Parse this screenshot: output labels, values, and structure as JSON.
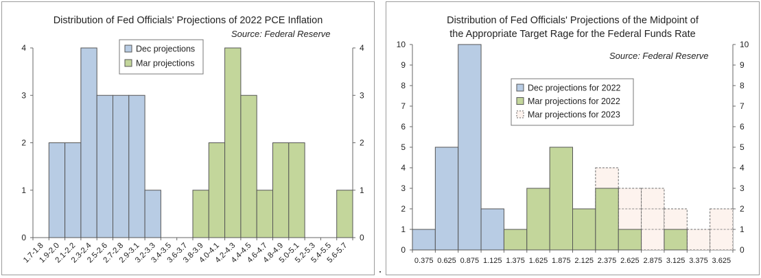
{
  "chart_data": [
    {
      "type": "bar",
      "title": "Distribution of Fed Officials' Projections of 2022 PCE Inflation",
      "source": "Source: Federal Reserve",
      "categories": [
        "1.7-1.8",
        "1.9-2.0",
        "2.1-2.2",
        "2.3-2.4",
        "2.5-2.6",
        "2.7-2.8",
        "2.9-3.1",
        "3.2-3.3",
        "3.4-3.5",
        "3.6-3.7",
        "3.8-3.9",
        "4.0-4.1",
        "4.2-4.3",
        "4.4-4.5",
        "4.6-4.7",
        "4.8-4.9",
        "5.0-5.1",
        "5.2-5.3",
        "5.4-5.5",
        "5.6-5.7"
      ],
      "ylim": [
        0,
        4
      ],
      "yticks": [
        "0",
        "1",
        "2",
        "3",
        "4"
      ],
      "legend_position": "top-center",
      "grid": false,
      "series": [
        {
          "name": "Dec projections",
          "color": "#b8cce4",
          "style": "solid",
          "values": [
            0,
            2,
            2,
            4,
            3,
            3,
            3,
            1,
            0,
            0,
            0,
            0,
            0,
            0,
            0,
            0,
            0,
            0,
            0,
            0
          ]
        },
        {
          "name": "Mar projections",
          "color": "#c3d69b",
          "style": "solid",
          "values": [
            0,
            0,
            0,
            0,
            0,
            0,
            0,
            0,
            0,
            0,
            1,
            2,
            4,
            3,
            1,
            2,
            2,
            0,
            0,
            1
          ]
        }
      ]
    },
    {
      "type": "bar",
      "title": "Distribution of Fed Officials' Projections of the Midpoint of",
      "title_line2": "the Appropriate Target Rage for the Federal Funds Rate",
      "source": "Source: Federal Reserve",
      "categories": [
        "0.375",
        "0.625",
        "0.875",
        "1.125",
        "1.375",
        "1.625",
        "1.875",
        "2.125",
        "2.375",
        "2.625",
        "2.875",
        "3.125",
        "3.375",
        "3.625"
      ],
      "ylim": [
        0,
        10
      ],
      "yticks": [
        "0",
        "1",
        "2",
        "3",
        "4",
        "5",
        "6",
        "7",
        "8",
        "9",
        "10"
      ],
      "legend_position": "top-center",
      "grid": false,
      "series": [
        {
          "name": "Dec projections for 2022",
          "color": "#b8cce4",
          "style": "solid",
          "values": [
            1,
            5,
            10,
            2,
            0,
            0,
            0,
            0,
            0,
            0,
            0,
            0,
            0,
            0
          ]
        },
        {
          "name": "Mar projections for 2022",
          "color": "#c3d69b",
          "style": "solid",
          "values": [
            0,
            0,
            0,
            0,
            1,
            3,
            5,
            2,
            3,
            1,
            0,
            1,
            0,
            0
          ]
        },
        {
          "name": "Mar projections for 2023",
          "color": "#fdf3ee",
          "style": "dashed",
          "values": [
            0,
            0,
            0,
            0,
            0,
            0,
            0,
            1,
            4,
            3,
            3,
            2,
            1,
            2
          ]
        }
      ]
    }
  ]
}
